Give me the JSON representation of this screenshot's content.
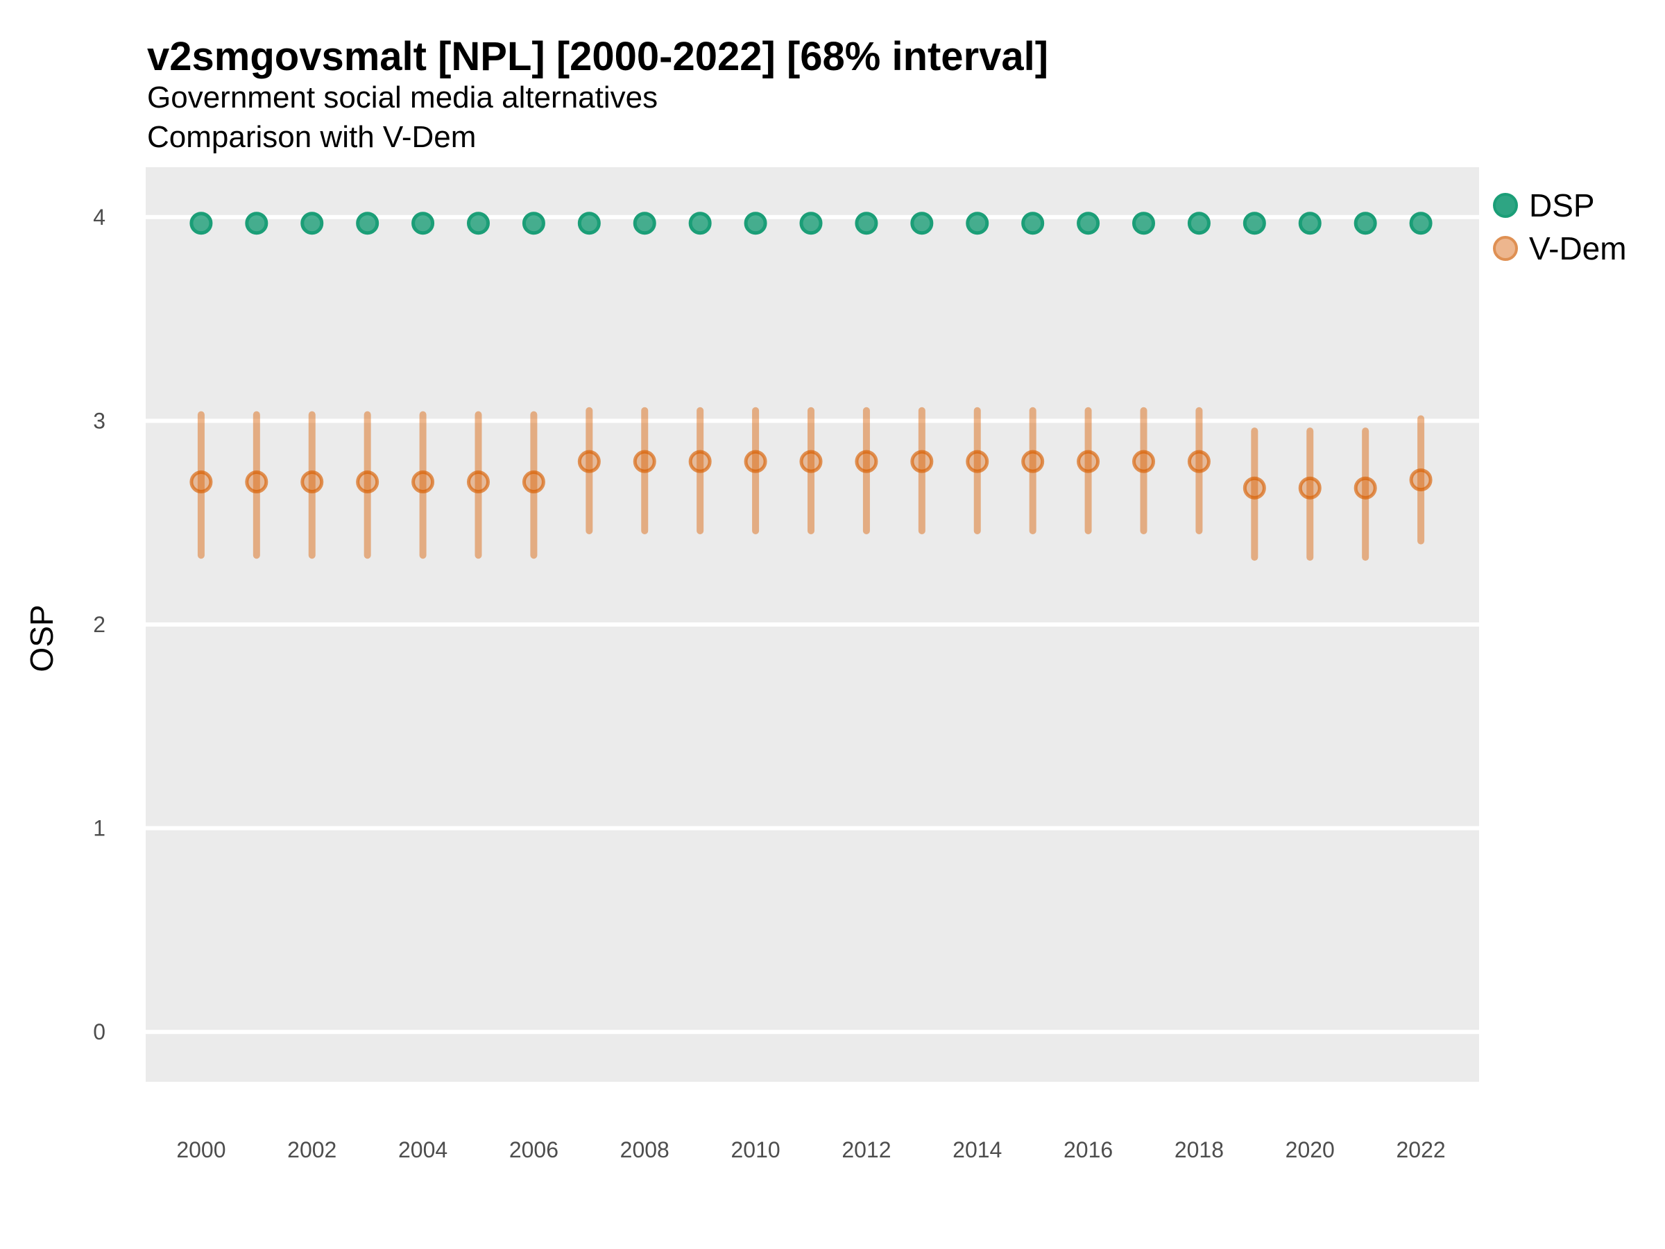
{
  "header": {
    "title": "v2smgovsmalt [NPL] [2000-2022] [68% interval]",
    "subtitle1": "Government social media alternatives",
    "subtitle2": "Comparison with V-Dem"
  },
  "legend": {
    "items": [
      {
        "label": "DSP",
        "color": "#1b9e77"
      },
      {
        "label": "V-Dem",
        "color": "#d95f02"
      }
    ],
    "position": "right"
  },
  "axes": {
    "ylabel": "OSP",
    "xlabel": ""
  },
  "chart_data": {
    "type": "scatter",
    "title": "v2smgovsmalt [NPL] [2000-2022] [68% interval]",
    "subtitle": [
      "Government social media alternatives",
      "Comparison with V-Dem"
    ],
    "xlabel": "",
    "ylabel": "OSP",
    "interval": "68%",
    "grid": "major",
    "panel_bg": "#EBEBEB",
    "grid_color": "#FFFFFF",
    "tick_label_color": "#4D4D4D",
    "legend_position": "right",
    "x": [
      2000,
      2001,
      2002,
      2003,
      2004,
      2005,
      2006,
      2007,
      2008,
      2009,
      2010,
      2011,
      2012,
      2013,
      2014,
      2015,
      2016,
      2017,
      2018,
      2019,
      2020,
      2021,
      2022
    ],
    "xticks": [
      2000,
      2002,
      2004,
      2006,
      2008,
      2010,
      2012,
      2014,
      2016,
      2018,
      2020,
      2022
    ],
    "yticks": [
      0,
      1,
      2,
      3,
      4
    ],
    "xlim": [
      1999,
      2023.05
    ],
    "ylim": [
      -0.245,
      4.245
    ],
    "series": [
      {
        "name": "DSP",
        "color": "#1b9e77",
        "fill_alpha": 0.8,
        "stroke_alpha": 1.0,
        "bar_alpha": 0,
        "values": [
          3.97,
          3.97,
          3.97,
          3.97,
          3.97,
          3.97,
          3.97,
          3.97,
          3.97,
          3.97,
          3.97,
          3.97,
          3.97,
          3.97,
          3.97,
          3.97,
          3.97,
          3.97,
          3.97,
          3.97,
          3.97,
          3.97,
          3.97
        ]
      },
      {
        "name": "V-Dem",
        "color": "#d95f02",
        "fill_alpha": 0.35,
        "stroke_alpha": 0.65,
        "bar_alpha": 0.45,
        "values": [
          2.7,
          2.7,
          2.7,
          2.7,
          2.7,
          2.7,
          2.7,
          2.8,
          2.8,
          2.8,
          2.8,
          2.8,
          2.8,
          2.8,
          2.8,
          2.8,
          2.8,
          2.8,
          2.8,
          2.67,
          2.67,
          2.67,
          2.71
        ],
        "lower": [
          2.34,
          2.34,
          2.34,
          2.34,
          2.34,
          2.34,
          2.34,
          2.46,
          2.46,
          2.46,
          2.46,
          2.46,
          2.46,
          2.46,
          2.46,
          2.46,
          2.46,
          2.46,
          2.46,
          2.33,
          2.33,
          2.33,
          2.41
        ],
        "upper": [
          3.03,
          3.03,
          3.03,
          3.03,
          3.03,
          3.03,
          3.03,
          3.05,
          3.05,
          3.05,
          3.05,
          3.05,
          3.05,
          3.05,
          3.05,
          3.05,
          3.05,
          3.05,
          3.05,
          2.95,
          2.95,
          2.95,
          3.01
        ]
      }
    ]
  }
}
